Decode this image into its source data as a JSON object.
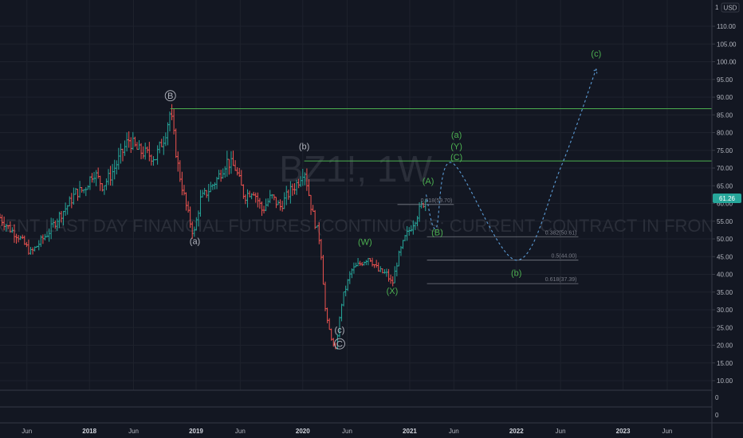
{
  "symbol": "BZ1!",
  "timeframe": "1W",
  "title_sep": ", ",
  "description": "BRENT LAST DAY FINANCIAL FUTURES (CONTINUOUS: CURRENT CONTRACT IN FRONT)",
  "currency": "USD",
  "scale_mode": "1",
  "last_price": "61.26",
  "colors": {
    "background": "#131722",
    "up_bar": "#26a69a",
    "down_bar": "#ef5350",
    "level_line": "#4caf50",
    "projection": "#5b9bd5",
    "wave_green": "#4caf50",
    "wave_grey": "#b2b5be",
    "price_badge": "#26a69a"
  },
  "chart_data": {
    "type": "bar",
    "x_start": "2017-03-01",
    "x_end": "2023-11-01",
    "ylim": [
      8,
      118
    ],
    "y_ticks": [
      "10.00",
      "15.00",
      "20.00",
      "25.00",
      "30.00",
      "35.00",
      "40.00",
      "45.00",
      "50.00",
      "55.00",
      "60.00",
      "65.00",
      "70.00",
      "75.00",
      "80.00",
      "85.00",
      "90.00",
      "95.00",
      "100.00",
      "105.00",
      "110.00"
    ],
    "x_ticks": [
      {
        "label": "Jun",
        "x": "2017-06-01",
        "bold": false
      },
      {
        "label": "2018",
        "x": "2018-01-01",
        "bold": true
      },
      {
        "label": "Jun",
        "x": "2018-06-01",
        "bold": false
      },
      {
        "label": "2019",
        "x": "2019-01-01",
        "bold": true
      },
      {
        "label": "Jun",
        "x": "2019-06-01",
        "bold": false
      },
      {
        "label": "2020",
        "x": "2020-01-01",
        "bold": true
      },
      {
        "label": "Jun",
        "x": "2020-06-01",
        "bold": false
      },
      {
        "label": "2021",
        "x": "2021-01-01",
        "bold": true
      },
      {
        "label": "Jun",
        "x": "2021-06-01",
        "bold": false
      },
      {
        "label": "2022",
        "x": "2022-01-01",
        "bold": true
      },
      {
        "label": "Jun",
        "x": "2022-06-01",
        "bold": false
      },
      {
        "label": "2023",
        "x": "2023-01-01",
        "bold": true
      },
      {
        "label": "Jun",
        "x": "2023-06-01",
        "bold": false
      }
    ],
    "price_path": [
      [
        "2017-03-01",
        56
      ],
      [
        "2017-04-01",
        53
      ],
      [
        "2017-05-01",
        51
      ],
      [
        "2017-06-15",
        46
      ],
      [
        "2017-07-15",
        49
      ],
      [
        "2017-08-15",
        52
      ],
      [
        "2017-09-15",
        56
      ],
      [
        "2017-10-15",
        59
      ],
      [
        "2017-11-15",
        63
      ],
      [
        "2017-12-15",
        64
      ],
      [
        "2018-01-15",
        69
      ],
      [
        "2018-02-15",
        65
      ],
      [
        "2018-03-15",
        68
      ],
      [
        "2018-04-15",
        73
      ],
      [
        "2018-05-15",
        78
      ],
      [
        "2018-06-15",
        75
      ],
      [
        "2018-07-15",
        74
      ],
      [
        "2018-08-15",
        73
      ],
      [
        "2018-09-15",
        79
      ],
      [
        "2018-10-05",
        86
      ],
      [
        "2018-11-01",
        70
      ],
      [
        "2018-12-01",
        58
      ],
      [
        "2018-12-24",
        51
      ],
      [
        "2019-01-15",
        61
      ],
      [
        "2019-02-15",
        64
      ],
      [
        "2019-03-15",
        67
      ],
      [
        "2019-04-15",
        72
      ],
      [
        "2019-05-15",
        70
      ],
      [
        "2019-06-15",
        62
      ],
      [
        "2019-07-15",
        64
      ],
      [
        "2019-08-15",
        58
      ],
      [
        "2019-09-15",
        62
      ],
      [
        "2019-10-15",
        59
      ],
      [
        "2019-11-15",
        63
      ],
      [
        "2019-12-15",
        66
      ],
      [
        "2020-01-06",
        70
      ],
      [
        "2020-02-01",
        58
      ],
      [
        "2020-03-01",
        49
      ],
      [
        "2020-03-20",
        28
      ],
      [
        "2020-04-21",
        18
      ],
      [
        "2020-05-15",
        33
      ],
      [
        "2020-06-15",
        41
      ],
      [
        "2020-07-15",
        43
      ],
      [
        "2020-08-15",
        45
      ],
      [
        "2020-09-15",
        41
      ],
      [
        "2020-10-15",
        40
      ],
      [
        "2020-11-02",
        37
      ],
      [
        "2020-11-20",
        44
      ],
      [
        "2020-12-15",
        50
      ],
      [
        "2021-01-15",
        55
      ],
      [
        "2021-02-15",
        60
      ],
      [
        "2021-02-26",
        61.26
      ]
    ],
    "levels": [
      {
        "price": 86.74,
        "from": "2018-10-05"
      },
      {
        "price": 72.0,
        "from": "2020-01-06"
      }
    ],
    "fib_levels": [
      {
        "ratio": "0.618",
        "price": 59.7,
        "label": "0.618(59.70)",
        "from": "2020-11-20",
        "to": "2021-06-01"
      },
      {
        "ratio": "0.382",
        "price": 50.61,
        "label": "0.382(50.61)",
        "from": "2021-03-01",
        "to": "2022-08-01"
      },
      {
        "ratio": "0.5",
        "price": 44.0,
        "label": "0.5(44.00)",
        "from": "2021-03-01",
        "to": "2022-08-01"
      },
      {
        "ratio": "0.618",
        "price": 37.39,
        "label": "0.618(37.39)",
        "from": "2021-03-01",
        "to": "2022-08-01"
      }
    ],
    "projection_path": [
      [
        "2021-02-26",
        62.5
      ],
      [
        "2021-04-01",
        53
      ],
      [
        "2021-05-25",
        71.5
      ],
      [
        "2022-01-01",
        44
      ],
      [
        "2022-06-01",
        70
      ],
      [
        "2022-10-01",
        98
      ]
    ],
    "wave_labels": [
      {
        "text": "B",
        "x": "2018-10-05",
        "y": 89.5,
        "circled": true,
        "color": "grey"
      },
      {
        "text": "(a)",
        "x": "2018-12-28",
        "y": 48.5,
        "circled": false,
        "color": "grey"
      },
      {
        "text": "(b)",
        "x": "2020-01-06",
        "y": 75.3,
        "circled": false,
        "color": "grey"
      },
      {
        "text": "(c)",
        "x": "2020-05-06",
        "y": 23.5,
        "circled": false,
        "color": "grey"
      },
      {
        "text": "C",
        "x": "2020-05-06",
        "y": 19.5,
        "circled": true,
        "color": "grey"
      },
      {
        "text": "(W)",
        "x": "2020-08-01",
        "y": 48.3,
        "circled": false,
        "color": "green"
      },
      {
        "text": "(X)",
        "x": "2020-11-02",
        "y": 34.5,
        "circled": false,
        "color": "green"
      },
      {
        "text": "(A)",
        "x": "2021-03-05",
        "y": 65.5,
        "circled": false,
        "color": "green"
      },
      {
        "text": "(B)",
        "x": "2021-04-05",
        "y": 51.0,
        "circled": false,
        "color": "green"
      },
      {
        "text": "(a)",
        "x": "2021-06-10",
        "y": 78.5,
        "circled": false,
        "color": "green"
      },
      {
        "text": "(Y)",
        "x": "2021-06-10",
        "y": 75.3,
        "circled": false,
        "color": "green"
      },
      {
        "text": "(C)",
        "x": "2021-06-10",
        "y": 72.3,
        "circled": false,
        "color": "green"
      },
      {
        "text": "(b)",
        "x": "2022-01-01",
        "y": 39.5,
        "circled": false,
        "color": "green"
      },
      {
        "text": "(c)",
        "x": "2022-10-01",
        "y": 101.5,
        "circled": false,
        "color": "green"
      }
    ],
    "sub_panes": [
      {
        "ytick": "0"
      },
      {
        "ytick": "0"
      }
    ]
  }
}
